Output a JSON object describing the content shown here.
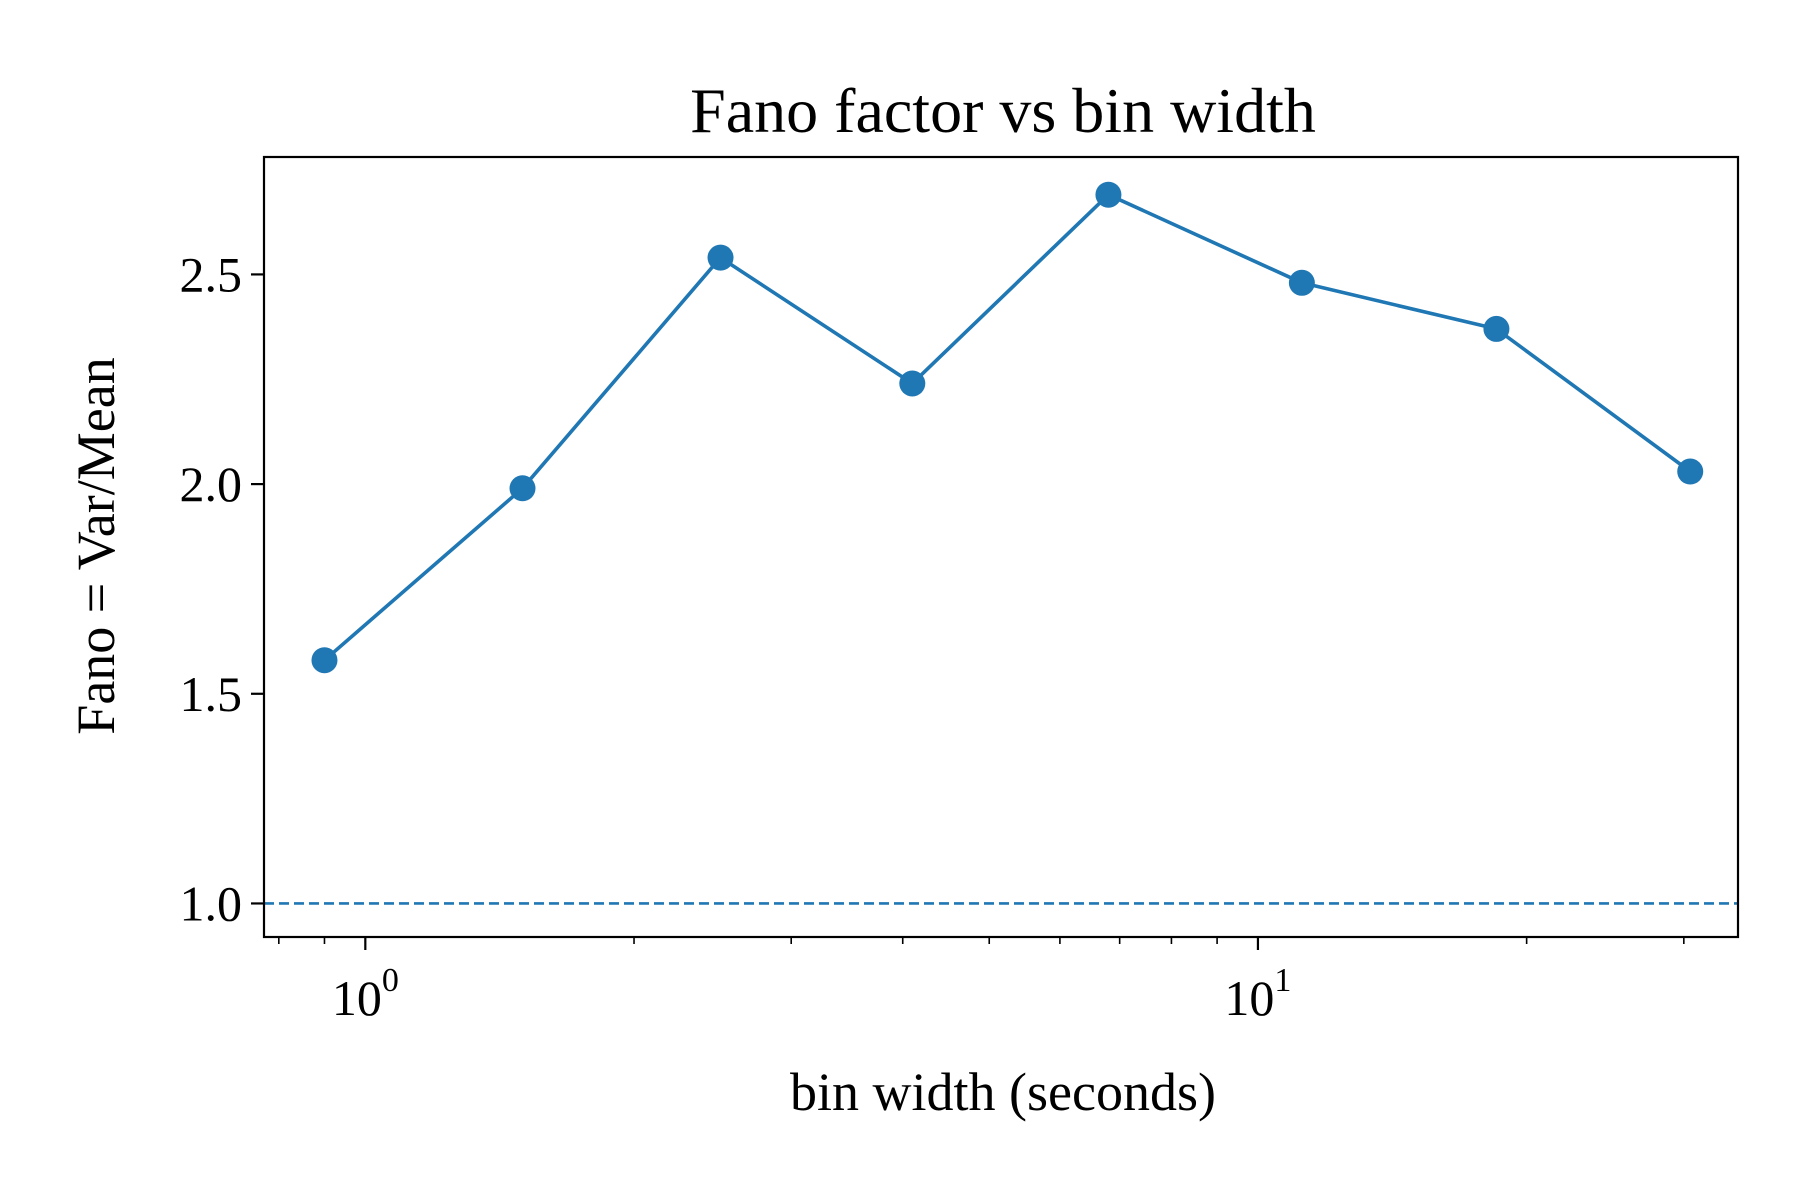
{
  "chart_data": {
    "type": "line",
    "title": "Fano factor vs bin width",
    "xlabel": "bin width (seconds)",
    "ylabel": "Fano = Var/Mean",
    "x_scale": "log",
    "x_ticks": [
      {
        "value": 1,
        "base": "10",
        "exponent": "0"
      },
      {
        "value": 10,
        "base": "10",
        "exponent": "1"
      }
    ],
    "y_ticks": [
      {
        "value": 1.0,
        "label": "1.0"
      },
      {
        "value": 1.5,
        "label": "1.5"
      },
      {
        "value": 2.0,
        "label": "2.0"
      },
      {
        "value": 2.5,
        "label": "2.5"
      }
    ],
    "xlim": [
      0.77,
      34.5
    ],
    "ylim": [
      0.92,
      2.78
    ],
    "grid": false,
    "series": [
      {
        "x": [
          0.9,
          1.5,
          2.5,
          4.1,
          6.8,
          11.2,
          18.5,
          30.5
        ],
        "y": [
          1.58,
          1.99,
          2.54,
          2.24,
          2.69,
          2.48,
          2.37,
          2.03
        ],
        "color": "#1f77b4",
        "marker": "circle",
        "line_style": "solid"
      }
    ],
    "reference_lines": [
      {
        "orientation": "horizontal",
        "y": 1.0,
        "style": "dashed",
        "color": "#1f77b4"
      }
    ]
  }
}
